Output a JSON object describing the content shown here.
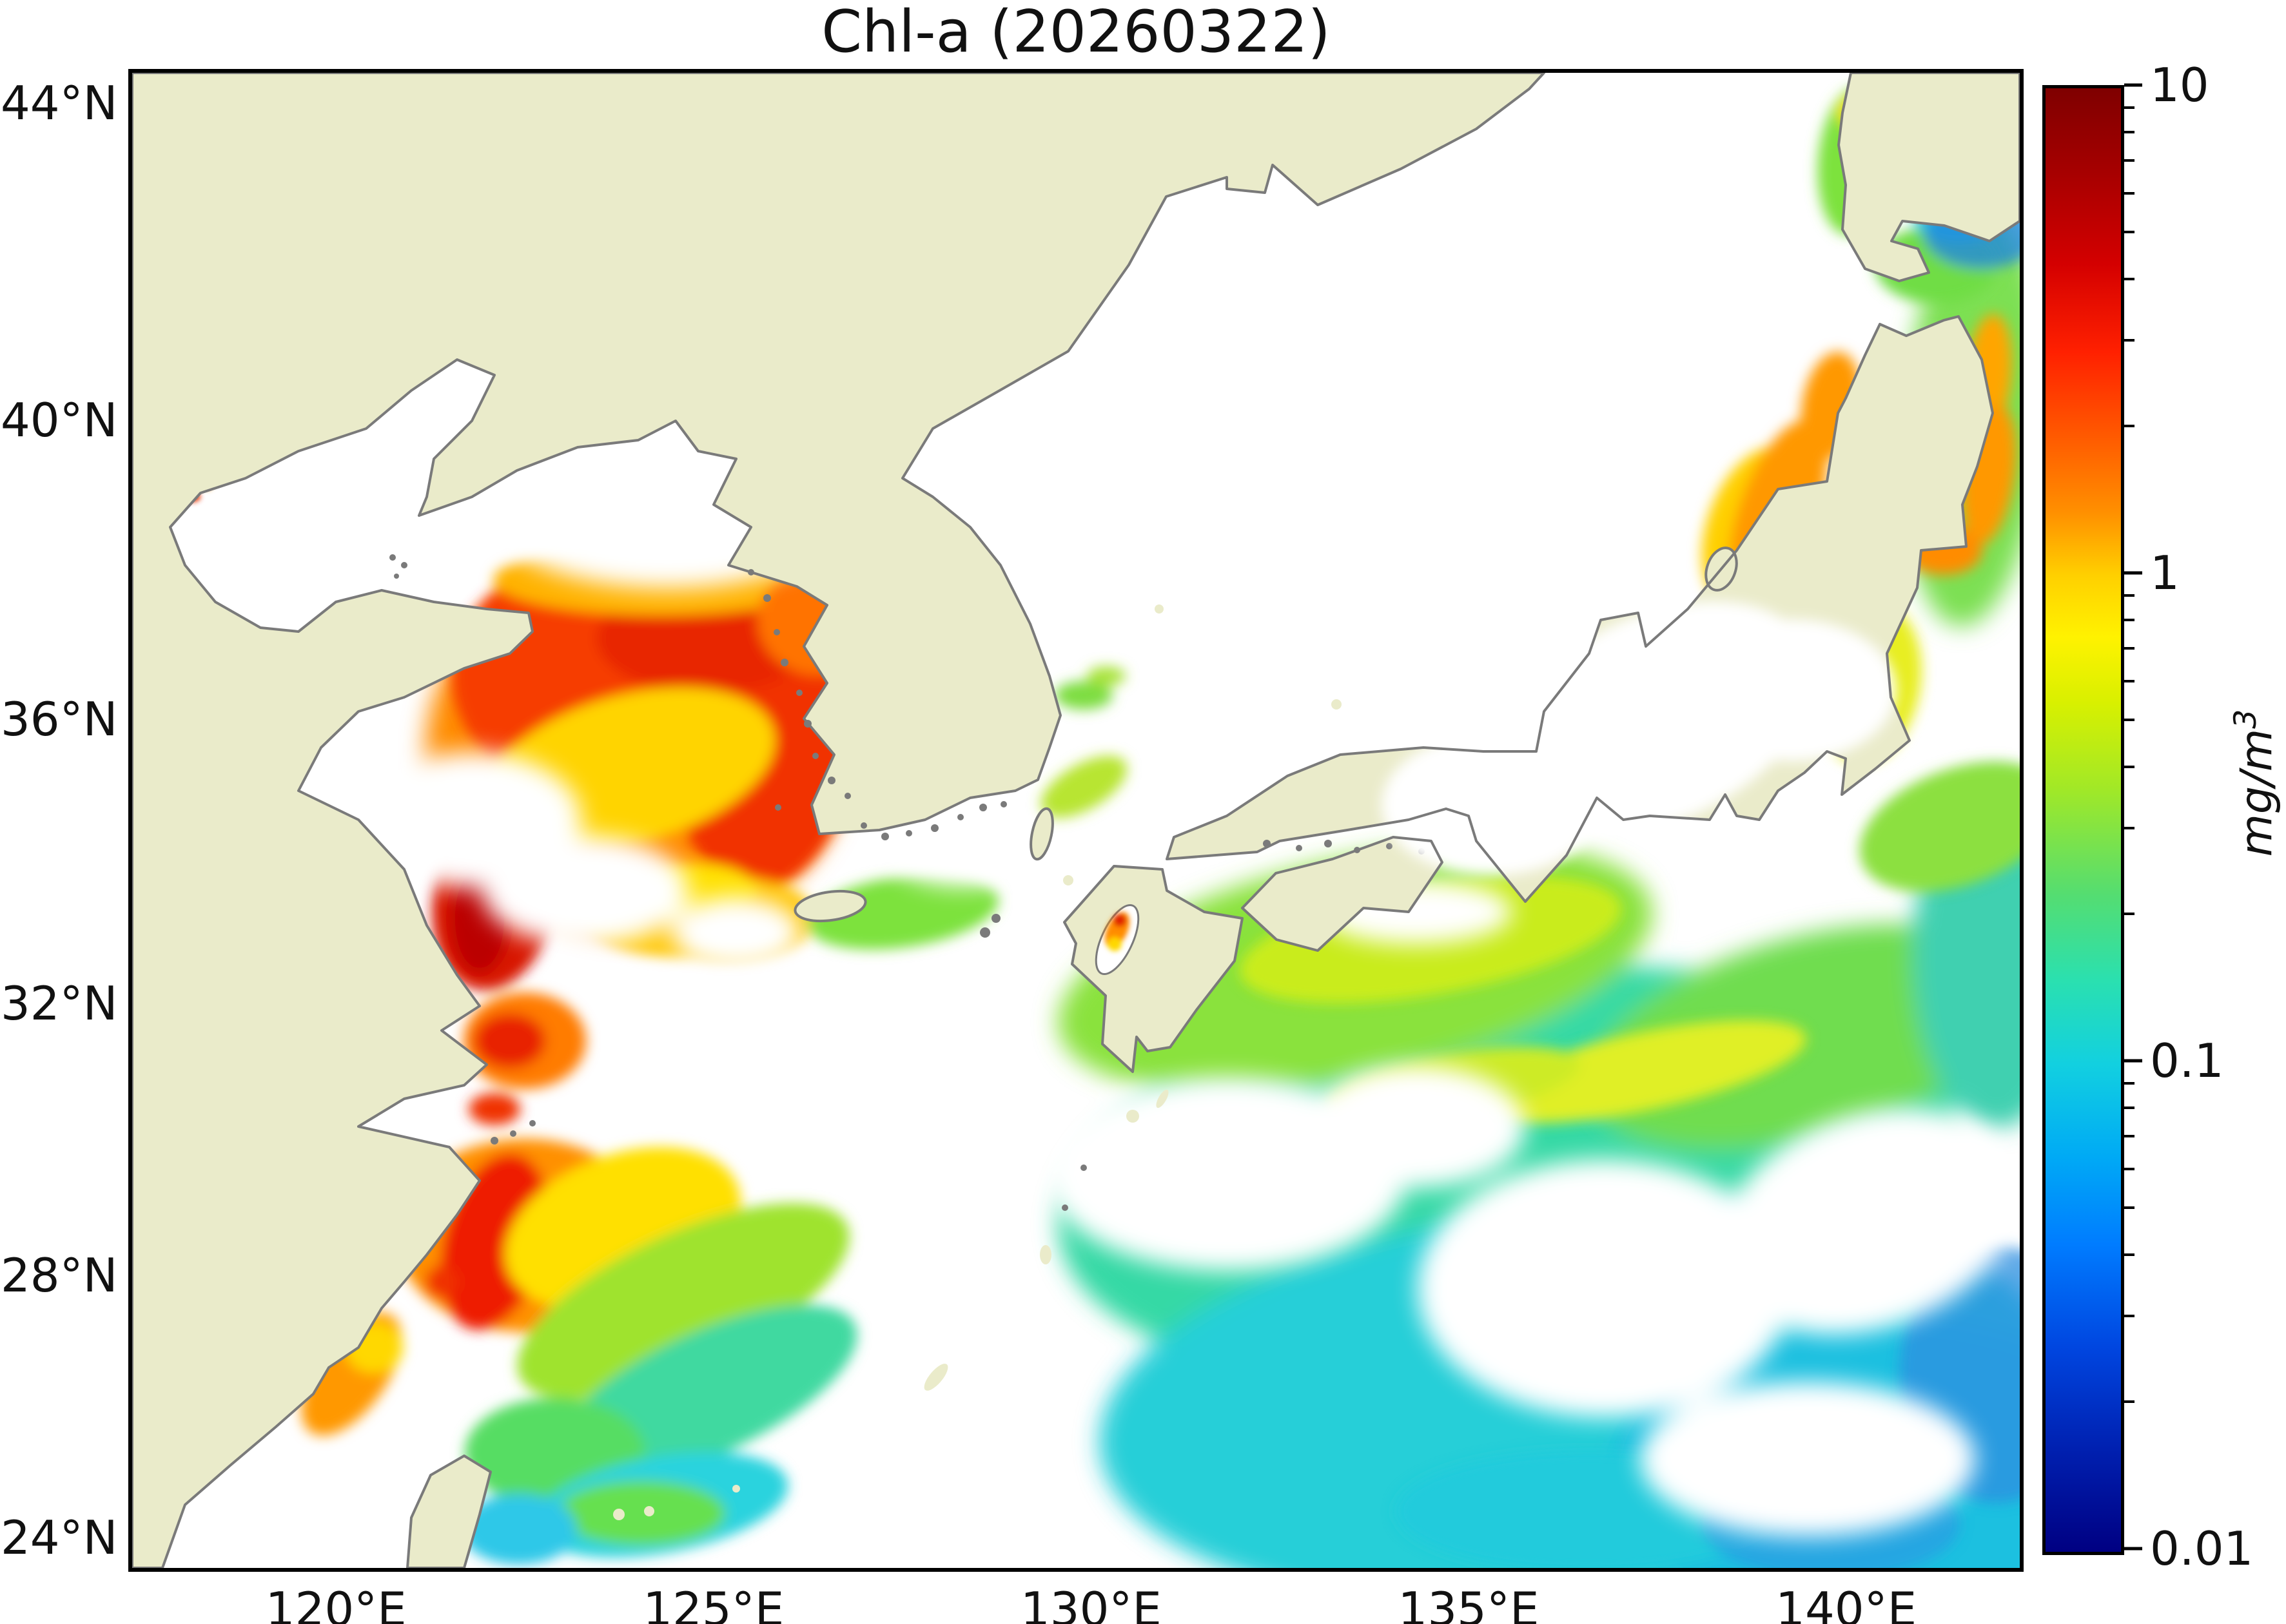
{
  "figure": {
    "title": "Chl-a (20260322)",
    "variable": "Chl-a",
    "date_code": "20260322"
  },
  "axes": {
    "x": {
      "range": {
        "min_lon": 117.3,
        "max_lon": 142.3
      },
      "ticks": [
        {
          "label": "120°E",
          "lon": 120
        },
        {
          "label": "125°E",
          "lon": 125
        },
        {
          "label": "130°E",
          "lon": 130
        },
        {
          "label": "135°E",
          "lon": 135
        },
        {
          "label": "140°E",
          "lon": 140
        }
      ]
    },
    "y": {
      "range": {
        "min_lat": 23.5,
        "max_lat": 44.4
      },
      "projection": "mercator",
      "ticks": [
        {
          "label": "44°N",
          "lat": 44
        },
        {
          "label": "40°N",
          "lat": 40
        },
        {
          "label": "36°N",
          "lat": 36
        },
        {
          "label": "32°N",
          "lat": 32
        },
        {
          "label": "28°N",
          "lat": 28
        },
        {
          "label": "24°N",
          "lat": 24
        }
      ]
    }
  },
  "colorbar": {
    "scale": "log",
    "min": 0.01,
    "max": 10,
    "ticks": [
      {
        "label": "10",
        "value": 10
      },
      {
        "label": "1",
        "value": 1
      },
      {
        "label": "0.1",
        "value": 0.1
      },
      {
        "label": "0.01",
        "value": 0.01
      }
    ],
    "unit_base": "mg/m",
    "unit_exponent": "3",
    "colormap": [
      [
        "0",
        "#7f0000"
      ],
      [
        "0.06",
        "#a80000"
      ],
      [
        "0.12",
        "#d40000"
      ],
      [
        "0.18",
        "#ff2000"
      ],
      [
        "0.24",
        "#ff5c00"
      ],
      [
        "0.29",
        "#ff9000"
      ],
      [
        "0.333",
        "#ffd000"
      ],
      [
        "0.375",
        "#fff200"
      ],
      [
        "0.42",
        "#d8f000"
      ],
      [
        "0.48",
        "#a0e828"
      ],
      [
        "0.55",
        "#55dd70"
      ],
      [
        "0.61",
        "#2ae0b0"
      ],
      [
        "0.667",
        "#12d0e0"
      ],
      [
        "0.73",
        "#00aaf5"
      ],
      [
        "0.79",
        "#007cff"
      ],
      [
        "0.86",
        "#0046e0"
      ],
      [
        "0.93",
        "#0020b0"
      ],
      [
        "1",
        "#000082"
      ]
    ]
  },
  "map": {
    "land_color": "#eaebca",
    "coastline_color": "#7a7a7a",
    "no_data_color": "#ffffff"
  },
  "chart_data": {
    "type": "heatmap",
    "title": "Chl-a (20260322)",
    "value_unit": "mg/m3",
    "value_scale": "log10",
    "value_range": [
      0.01,
      10
    ],
    "lon_range": [
      117.3,
      142.3
    ],
    "lat_range": [
      23.5,
      44.4
    ],
    "estimated_values_read_from_colors": [
      {
        "region_lonlat": [
          122.5,
          36.5
        ],
        "approx_mg_m3": 3.0
      },
      {
        "region_lonlat": [
          125.5,
          35.9
        ],
        "approx_mg_m3": 4.0
      },
      {
        "region_lonlat": [
          122.0,
          33.4
        ],
        "approx_mg_m3": 7.0
      },
      {
        "region_lonlat": [
          123.9,
          35.3
        ],
        "approx_mg_m3": 1.2
      },
      {
        "region_lonlat": [
          122.2,
          31.4
        ],
        "approx_mg_m3": 5.0
      },
      {
        "region_lonlat": [
          122.1,
          28.5
        ],
        "approx_mg_m3": 5.0
      },
      {
        "region_lonlat": [
          123.8,
          28.7
        ],
        "approx_mg_m3": 1.0
      },
      {
        "region_lonlat": [
          125.2,
          33.2
        ],
        "approx_mg_m3": 1.5
      },
      {
        "region_lonlat": [
          127.5,
          33.3
        ],
        "approx_mg_m3": 0.45
      },
      {
        "region_lonlat": [
          124.6,
          27.6
        ],
        "approx_mg_m3": 0.5
      },
      {
        "region_lonlat": [
          124.9,
          26.2
        ],
        "approx_mg_m3": 0.25
      },
      {
        "region_lonlat": [
          130.4,
          33.0
        ],
        "approx_mg_m3": 2.0
      },
      {
        "region_lonlat": [
          139.0,
          38.8
        ],
        "approx_mg_m3": 1.5
      },
      {
        "region_lonlat": [
          133.5,
          32.5
        ],
        "approx_mg_m3": 0.6
      },
      {
        "region_lonlat": [
          135.5,
          29.5
        ],
        "approx_mg_m3": 0.2
      },
      {
        "region_lonlat": [
          136.5,
          26.0
        ],
        "approx_mg_m3": 0.12
      },
      {
        "region_lonlat": [
          140.5,
          25.0
        ],
        "approx_mg_m3": 0.08
      },
      {
        "region_lonlat": [
          141.8,
          42.4
        ],
        "approx_mg_m3": 0.05
      },
      {
        "region_lonlat": [
          141.7,
          40.0
        ],
        "approx_mg_m3": 0.5
      },
      {
        "region_lonlat": [
          141.9,
          39.3
        ],
        "approx_mg_m3": 1.5
      }
    ],
    "no_data_regions": [
      "Bohai Sea",
      "northern Yellow Sea",
      "Sea of Japan (most)",
      "central East China Sea",
      "scattered Pacific cloud gaps"
    ]
  }
}
